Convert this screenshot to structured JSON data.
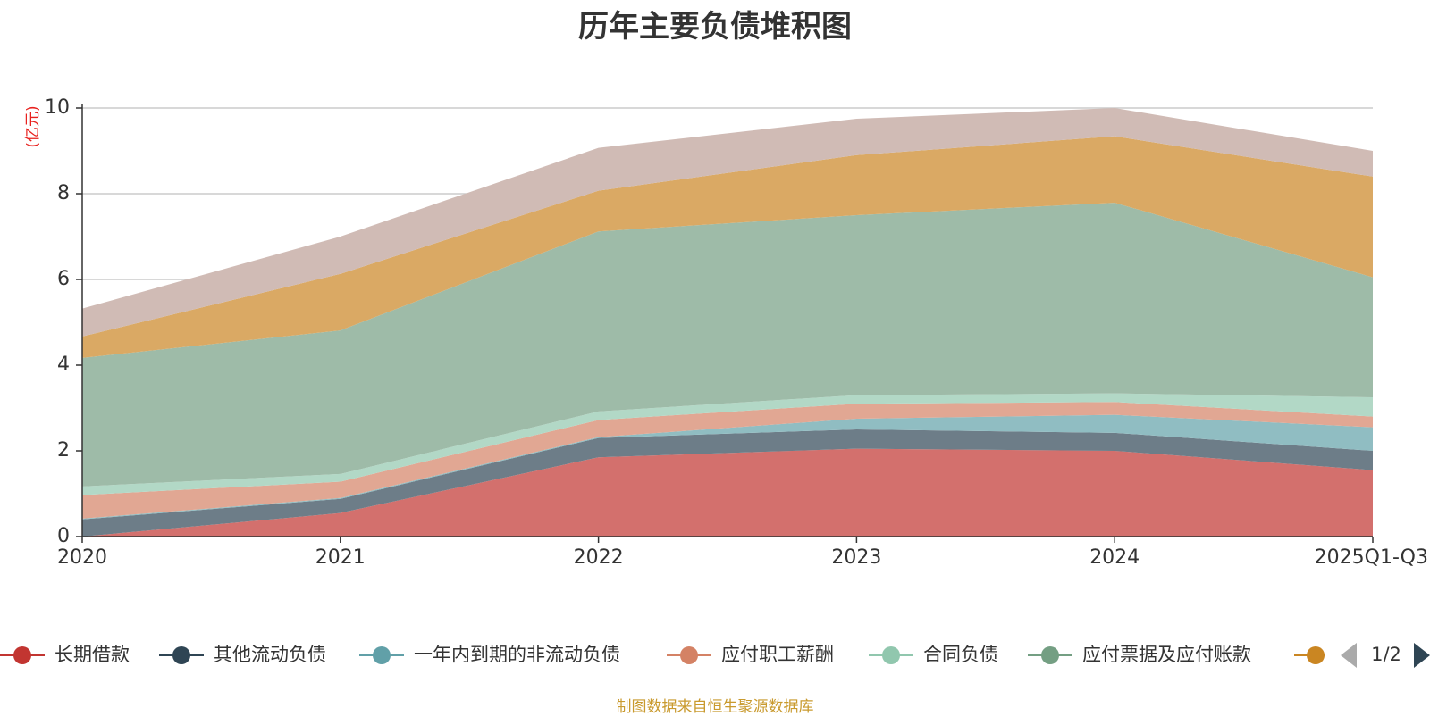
{
  "colors": {
    "title": "#333333",
    "ylabel": "#e8211e",
    "source": "#c99a2e",
    "grid": "#cccccc",
    "axis": "#333333",
    "pager_arrow_prev": "#aaaaaa",
    "pager_arrow_next": "#2f4554"
  },
  "chart_data": {
    "type": "area",
    "stacked": true,
    "title": "历年主要负债堆积图",
    "ylabel": "(亿元)",
    "xlabel": "",
    "ylim": [
      0,
      10
    ],
    "yticks": [
      0,
      2,
      4,
      6,
      8,
      10
    ],
    "grid": true,
    "categories": [
      "2020",
      "2021",
      "2022",
      "2023",
      "2024",
      "2025Q1-Q3"
    ],
    "series": [
      {
        "name": "长期借款",
        "color": "#c23531",
        "fill": "#d3706d",
        "values": [
          0,
          0.55,
          1.85,
          2.05,
          2.0,
          1.55
        ]
      },
      {
        "name": "其他流动负债",
        "color": "#2f4554",
        "fill": "#6d7d88",
        "values": [
          0.4,
          0.33,
          0.45,
          0.45,
          0.42,
          0.45
        ]
      },
      {
        "name": "一年内到期的非流动负债",
        "color": "#61a0a8",
        "fill": "#90bdc2",
        "values": [
          0.02,
          0.02,
          0.02,
          0.25,
          0.42,
          0.55
        ]
      },
      {
        "name": "应付职工薪酬",
        "color": "#d48265",
        "fill": "#e1a793",
        "values": [
          0.55,
          0.38,
          0.4,
          0.35,
          0.3,
          0.25
        ]
      },
      {
        "name": "合同负债",
        "color": "#91c7ae",
        "fill": "#b2d8c6",
        "values": [
          0.2,
          0.18,
          0.2,
          0.2,
          0.2,
          0.45
        ]
      },
      {
        "name": "应付票据及应付账款",
        "color": "#749f83",
        "fill": "#9ebba8",
        "values": [
          3.0,
          3.35,
          4.2,
          4.2,
          4.45,
          2.8
        ]
      },
      {
        "name": "",
        "color": "#ca8622",
        "fill": "#daa964",
        "values": [
          0.5,
          1.32,
          0.95,
          1.4,
          1.55,
          2.35
        ]
      },
      {
        "name": "",
        "color": "#bda29a",
        "fill": "#d0bbb5",
        "values": [
          0.65,
          0.87,
          1.0,
          0.85,
          0.66,
          0.6
        ]
      }
    ],
    "legend": {
      "position": "bottom",
      "page": "1/2",
      "visible_count": 7
    }
  },
  "source_note": "制图数据来自恒生聚源数据库"
}
